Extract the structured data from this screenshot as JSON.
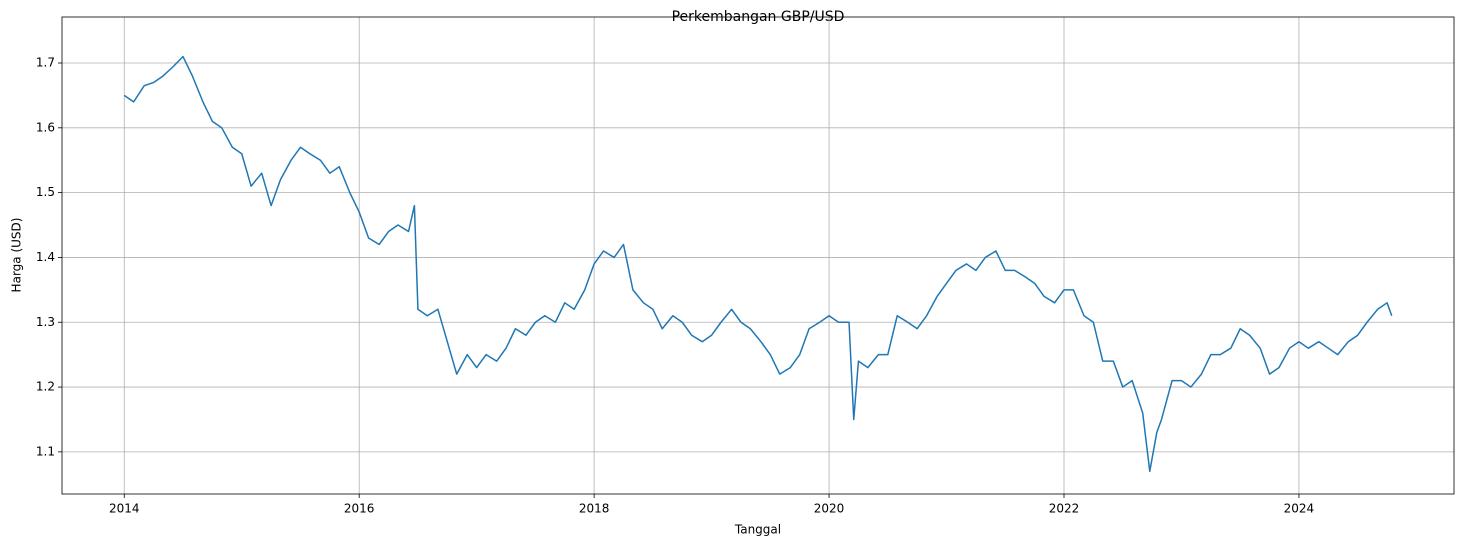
{
  "chart_data": {
    "type": "line",
    "title": "Perkembangan GBP/USD",
    "x_label": "Tanggal",
    "y_label": "Harga (USD)",
    "x": [
      2014.0,
      2014.08,
      2014.17,
      2014.25,
      2014.33,
      2014.42,
      2014.5,
      2014.58,
      2014.67,
      2014.75,
      2014.83,
      2014.92,
      2015.0,
      2015.08,
      2015.17,
      2015.25,
      2015.33,
      2015.42,
      2015.5,
      2015.58,
      2015.67,
      2015.75,
      2015.83,
      2015.92,
      2016.0,
      2016.08,
      2016.17,
      2016.25,
      2016.33,
      2016.42,
      2016.47,
      2016.5,
      2016.58,
      2016.67,
      2016.75,
      2016.83,
      2016.92,
      2017.0,
      2017.08,
      2017.17,
      2017.25,
      2017.33,
      2017.42,
      2017.5,
      2017.58,
      2017.67,
      2017.75,
      2017.83,
      2017.92,
      2018.0,
      2018.08,
      2018.17,
      2018.25,
      2018.33,
      2018.42,
      2018.5,
      2018.58,
      2018.67,
      2018.75,
      2018.83,
      2018.92,
      2019.0,
      2019.08,
      2019.17,
      2019.25,
      2019.33,
      2019.42,
      2019.5,
      2019.58,
      2019.67,
      2019.75,
      2019.83,
      2019.92,
      2020.0,
      2020.08,
      2020.17,
      2020.21,
      2020.25,
      2020.33,
      2020.42,
      2020.5,
      2020.58,
      2020.67,
      2020.75,
      2020.83,
      2020.92,
      2021.0,
      2021.08,
      2021.17,
      2021.25,
      2021.33,
      2021.42,
      2021.5,
      2021.58,
      2021.67,
      2021.75,
      2021.83,
      2021.92,
      2022.0,
      2022.08,
      2022.17,
      2022.25,
      2022.33,
      2022.42,
      2022.5,
      2022.58,
      2022.67,
      2022.73,
      2022.79,
      2022.83,
      2022.92,
      2023.0,
      2023.08,
      2023.17,
      2023.25,
      2023.33,
      2023.42,
      2023.5,
      2023.58,
      2023.67,
      2023.75,
      2023.83,
      2023.92,
      2024.0,
      2024.08,
      2024.17,
      2024.25,
      2024.33,
      2024.42,
      2024.5,
      2024.58,
      2024.67,
      2024.75,
      2024.79
    ],
    "series": [
      {
        "color": "#1f77b4",
        "values": [
          1.65,
          1.64,
          1.665,
          1.67,
          1.68,
          1.695,
          1.71,
          1.68,
          1.64,
          1.61,
          1.6,
          1.57,
          1.56,
          1.51,
          1.53,
          1.48,
          1.52,
          1.55,
          1.57,
          1.56,
          1.55,
          1.53,
          1.54,
          1.5,
          1.47,
          1.43,
          1.42,
          1.44,
          1.45,
          1.44,
          1.48,
          1.32,
          1.31,
          1.32,
          1.27,
          1.22,
          1.25,
          1.23,
          1.25,
          1.24,
          1.26,
          1.29,
          1.28,
          1.3,
          1.31,
          1.3,
          1.33,
          1.32,
          1.35,
          1.39,
          1.41,
          1.4,
          1.42,
          1.35,
          1.33,
          1.32,
          1.29,
          1.31,
          1.3,
          1.28,
          1.27,
          1.28,
          1.3,
          1.32,
          1.3,
          1.29,
          1.27,
          1.25,
          1.22,
          1.23,
          1.25,
          1.29,
          1.3,
          1.31,
          1.3,
          1.3,
          1.15,
          1.24,
          1.23,
          1.25,
          1.25,
          1.31,
          1.3,
          1.29,
          1.31,
          1.34,
          1.36,
          1.38,
          1.39,
          1.38,
          1.4,
          1.41,
          1.38,
          1.38,
          1.37,
          1.36,
          1.34,
          1.33,
          1.35,
          1.35,
          1.31,
          1.3,
          1.24,
          1.24,
          1.2,
          1.21,
          1.16,
          1.07,
          1.13,
          1.15,
          1.21,
          1.21,
          1.2,
          1.22,
          1.25,
          1.25,
          1.26,
          1.29,
          1.28,
          1.26,
          1.22,
          1.23,
          1.26,
          1.27,
          1.26,
          1.27,
          1.26,
          1.25,
          1.27,
          1.28,
          1.3,
          1.32,
          1.33,
          1.31
        ]
      }
    ],
    "xlim": [
      2013.47,
      2025.32
    ],
    "xticks": [
      2014,
      2016,
      2018,
      2020,
      2022,
      2024
    ],
    "ylim": [
      1.035,
      1.771
    ],
    "yticks": [
      1.1,
      1.2,
      1.3,
      1.4,
      1.5,
      1.6,
      1.7
    ],
    "grid": true
  }
}
